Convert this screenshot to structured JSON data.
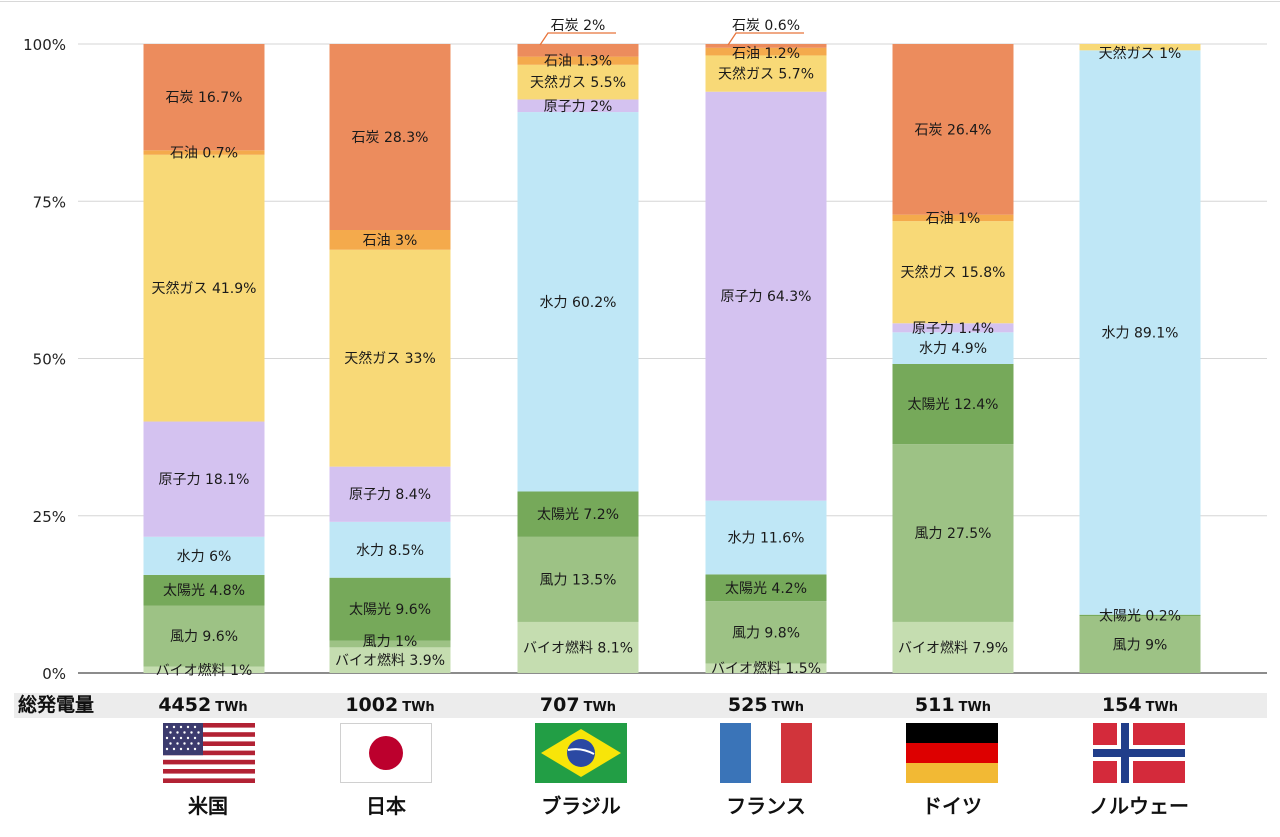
{
  "chart_data": {
    "type": "bar",
    "stacked": true,
    "ylim": [
      0,
      100
    ],
    "yticks": [
      "0%",
      "25%",
      "50%",
      "75%",
      "100%"
    ],
    "grid": true,
    "categories": [
      "米国",
      "日本",
      "ブラジル",
      "フランス",
      "ドイツ",
      "ノルウェー"
    ],
    "colors": {
      "バイオ燃料": "#c5ddb0",
      "風力": "#9dc285",
      "太陽光": "#76a95a",
      "水力": "#bfe7f6",
      "原子力": "#d4c2f0",
      "天然ガス": "#f8d977",
      "石油": "#f4aa4c",
      "石炭": "#ec8c5d"
    },
    "bars": [
      {
        "country": "米国",
        "segments": [
          {
            "source": "バイオ燃料",
            "value": 1.0,
            "label": "バイオ燃料 1%"
          },
          {
            "source": "風力",
            "value": 9.6,
            "label": "風力 9.6%"
          },
          {
            "source": "太陽光",
            "value": 4.8,
            "label": "太陽光 4.8%"
          },
          {
            "source": "水力",
            "value": 6.0,
            "label": "水力 6%"
          },
          {
            "source": "原子力",
            "value": 18.1,
            "label": "原子力 18.1%"
          },
          {
            "source": "天然ガス",
            "value": 41.9,
            "label": "天然ガス 41.9%"
          },
          {
            "source": "石油",
            "value": 0.7,
            "label": "石油 0.7%"
          },
          {
            "source": "石炭",
            "value": 16.7,
            "label": "石炭 16.7%"
          }
        ]
      },
      {
        "country": "日本",
        "segments": [
          {
            "source": "バイオ燃料",
            "value": 3.9,
            "label": "バイオ燃料 3.9%"
          },
          {
            "source": "風力",
            "value": 1.0,
            "label": "風力 1%"
          },
          {
            "source": "太陽光",
            "value": 9.6,
            "label": "太陽光 9.6%"
          },
          {
            "source": "水力",
            "value": 8.5,
            "label": "水力 8.5%"
          },
          {
            "source": "原子力",
            "value": 8.4,
            "label": "原子力 8.4%"
          },
          {
            "source": "天然ガス",
            "value": 33.0,
            "label": "天然ガス 33%"
          },
          {
            "source": "石油",
            "value": 3.0,
            "label": "石油 3%"
          },
          {
            "source": "石炭",
            "value": 28.3,
            "label": "石炭 28.3%"
          }
        ]
      },
      {
        "country": "ブラジル",
        "segments": [
          {
            "source": "バイオ燃料",
            "value": 8.1,
            "label": "バイオ燃料 8.1%"
          },
          {
            "source": "風力",
            "value": 13.5,
            "label": "風力 13.5%"
          },
          {
            "source": "太陽光",
            "value": 7.2,
            "label": "太陽光 7.2%"
          },
          {
            "source": "水力",
            "value": 60.2,
            "label": "水力 60.2%"
          },
          {
            "source": "原子力",
            "value": 2.0,
            "label": "原子力 2%"
          },
          {
            "source": "天然ガス",
            "value": 5.5,
            "label": "天然ガス 5.5%"
          },
          {
            "source": "石油",
            "value": 1.3,
            "label": "石油 1.3%"
          },
          {
            "source": "石炭",
            "value": 2.0,
            "label": "石炭 2%",
            "callout": true
          }
        ]
      },
      {
        "country": "フランス",
        "segments": [
          {
            "source": "バイオ燃料",
            "value": 1.5,
            "label": "バイオ燃料 1.5%"
          },
          {
            "source": "風力",
            "value": 9.8,
            "label": "風力 9.8%"
          },
          {
            "source": "太陽光",
            "value": 4.2,
            "label": "太陽光 4.2%"
          },
          {
            "source": "水力",
            "value": 11.6,
            "label": "水力 11.6%"
          },
          {
            "source": "原子力",
            "value": 64.3,
            "label": "原子力 64.3%"
          },
          {
            "source": "天然ガス",
            "value": 5.7,
            "label": "天然ガス 5.7%"
          },
          {
            "source": "石油",
            "value": 1.2,
            "label": "石油 1.2%"
          },
          {
            "source": "石炭",
            "value": 0.6,
            "label": "石炭 0.6%",
            "callout": true
          }
        ]
      },
      {
        "country": "ドイツ",
        "segments": [
          {
            "source": "バイオ燃料",
            "value": 7.9,
            "label": "バイオ燃料 7.9%"
          },
          {
            "source": "風力",
            "value": 27.5,
            "label": "風力 27.5%"
          },
          {
            "source": "太陽光",
            "value": 12.4,
            "label": "太陽光 12.4%"
          },
          {
            "source": "水力",
            "value": 4.9,
            "label": "水力 4.9%"
          },
          {
            "source": "原子力",
            "value": 1.4,
            "label": "原子力 1.4%"
          },
          {
            "source": "天然ガス",
            "value": 15.8,
            "label": "天然ガス 15.8%"
          },
          {
            "source": "石油",
            "value": 1.0,
            "label": "石油 1%"
          },
          {
            "source": "石炭",
            "value": 26.4,
            "label": "石炭 26.4%"
          }
        ]
      },
      {
        "country": "ノルウェー",
        "segments": [
          {
            "source": "風力",
            "value": 9.0,
            "label": "風力 9%"
          },
          {
            "source": "太陽光",
            "value": 0.2,
            "label": "太陽光 0.2%"
          },
          {
            "source": "水力",
            "value": 89.1,
            "label": "水力 89.1%"
          },
          {
            "source": "天然ガス",
            "value": 1.0,
            "label": "天然ガス 1%"
          }
        ]
      }
    ]
  },
  "totals": {
    "label": "総発電量",
    "unit": "TWh",
    "values": [
      "4452",
      "1002",
      "707",
      "525",
      "511",
      "154"
    ]
  },
  "countries": [
    "米国",
    "日本",
    "ブラジル",
    "フランス",
    "ドイツ",
    "ノルウェー"
  ],
  "flags": [
    "us-flag",
    "japan-flag",
    "brazil-flag",
    "france-flag",
    "germany-flag",
    "norway-flag"
  ]
}
